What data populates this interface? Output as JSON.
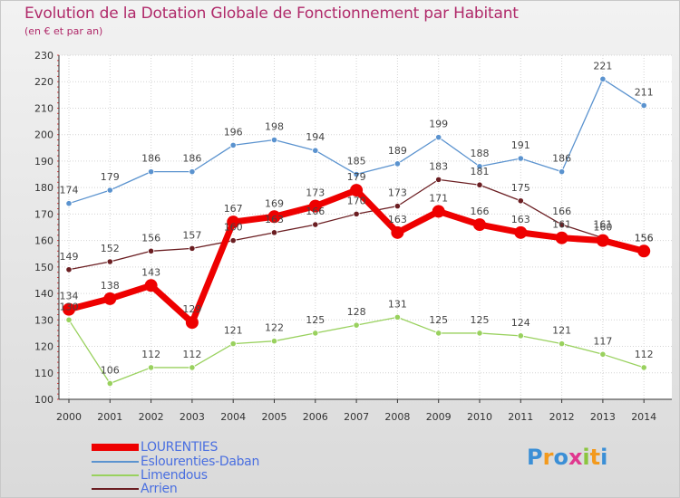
{
  "chart_data": {
    "type": "line",
    "title": "Evolution de la Dotation Globale de Fonctionnement par Habitant",
    "subtitle": "(en € et par an)",
    "xlabel": "",
    "ylabel": "",
    "ylim": [
      100,
      230
    ],
    "yticks": [
      100,
      110,
      120,
      130,
      140,
      150,
      160,
      170,
      180,
      190,
      200,
      210,
      220,
      230
    ],
    "categories": [
      "2000",
      "2001",
      "2002",
      "2003",
      "2004",
      "2005",
      "2006",
      "2007",
      "2008",
      "2009",
      "2010",
      "2011",
      "2012",
      "2013",
      "2014"
    ],
    "grid": true,
    "legend_position": "bottom-left",
    "series": [
      {
        "name": "Eslourenties-Daban",
        "color": "#5b93cf",
        "values": [
          174,
          179,
          186,
          186,
          196,
          198,
          194,
          185,
          189,
          199,
          188,
          191,
          186,
          221,
          211
        ]
      },
      {
        "name": "Limendous",
        "color": "#99d15e",
        "values": [
          130,
          106,
          112,
          112,
          121,
          122,
          125,
          128,
          131,
          125,
          125,
          124,
          121,
          117,
          112
        ]
      },
      {
        "name": "Arrien",
        "color": "#6b1e22",
        "values": [
          149,
          152,
          156,
          157,
          160,
          163,
          166,
          170,
          173,
          183,
          181,
          175,
          166,
          161,
          156
        ]
      },
      {
        "name": "LOURENTIES",
        "color": "#ee0000",
        "values": [
          134,
          138,
          143,
          129,
          167,
          169,
          173,
          179,
          163,
          171,
          166,
          163,
          161,
          160,
          156
        ]
      }
    ]
  },
  "legend": {
    "items": [
      {
        "label": "LOURENTIES",
        "color": "#ee0000"
      },
      {
        "label": "Eslourenties-Daban",
        "color": "#5b93cf"
      },
      {
        "label": "Limendous",
        "color": "#99d15e"
      },
      {
        "label": "Arrien",
        "color": "#6b1e22"
      }
    ]
  },
  "logo": {
    "text": "Proxiti",
    "letter_colors": [
      "#3b8fd6",
      "#f39a1d",
      "#3b8fd6",
      "#e0388f",
      "#8bc53f",
      "#f39a1d",
      "#3b8fd6"
    ]
  }
}
